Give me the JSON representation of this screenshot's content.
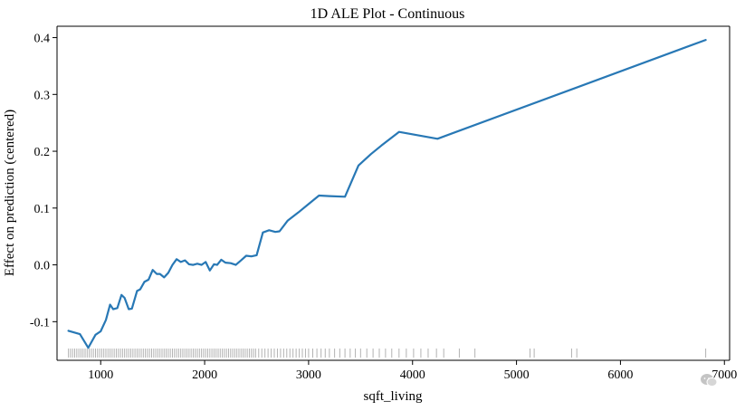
{
  "chart_data": {
    "type": "line",
    "title": "1D ALE Plot - Continuous",
    "xlabel": "sqft_living",
    "ylabel": "Effect on prediction (centered)",
    "xlim": [
      580,
      7050
    ],
    "ylim": [
      -0.168,
      0.42
    ],
    "x_ticks": [
      1000,
      2000,
      3000,
      4000,
      5000,
      6000,
      7000
    ],
    "y_ticks": [
      -0.1,
      0.0,
      0.1,
      0.2,
      0.3,
      0.4
    ],
    "y_tick_labels": [
      "-0.1",
      "0.0",
      "0.1",
      "0.2",
      "0.3",
      "0.4"
    ],
    "grid": false,
    "series": [
      {
        "color": "#2878b5",
        "x": [
          690,
          800,
          880,
          950,
          1000,
          1050,
          1090,
          1120,
          1160,
          1200,
          1230,
          1270,
          1300,
          1350,
          1380,
          1420,
          1460,
          1500,
          1540,
          1570,
          1610,
          1650,
          1690,
          1730,
          1770,
          1810,
          1850,
          1890,
          1930,
          1970,
          2010,
          2050,
          2090,
          2120,
          2160,
          2200,
          2250,
          2300,
          2350,
          2400,
          2450,
          2500,
          2560,
          2620,
          2680,
          2720,
          2800,
          2900,
          3000,
          3100,
          3200,
          3350,
          3480,
          3600,
          3700,
          3870,
          4240,
          6820
        ],
        "y": [
          -0.116,
          -0.122,
          -0.146,
          -0.123,
          -0.117,
          -0.097,
          -0.07,
          -0.078,
          -0.076,
          -0.053,
          -0.058,
          -0.078,
          -0.077,
          -0.046,
          -0.043,
          -0.03,
          -0.026,
          -0.009,
          -0.016,
          -0.016,
          -0.022,
          -0.014,
          0.0,
          0.01,
          0.005,
          0.008,
          0.001,
          0.0,
          0.002,
          0.0,
          0.005,
          -0.01,
          0.001,
          0.0,
          0.009,
          0.004,
          0.003,
          0.0,
          0.008,
          0.016,
          0.015,
          0.017,
          0.057,
          0.061,
          0.058,
          0.059,
          0.078,
          0.092,
          0.107,
          0.122,
          0.121,
          0.12,
          0.175,
          0.195,
          0.21,
          0.234,
          0.222,
          0.396
        ]
      }
    ],
    "rug_x": [
      690,
      710,
      730,
      750,
      770,
      790,
      810,
      830,
      850,
      870,
      890,
      910,
      930,
      950,
      970,
      990,
      1010,
      1030,
      1050,
      1070,
      1090,
      1110,
      1130,
      1150,
      1170,
      1190,
      1210,
      1230,
      1250,
      1270,
      1290,
      1310,
      1330,
      1350,
      1370,
      1390,
      1410,
      1430,
      1450,
      1470,
      1490,
      1510,
      1530,
      1550,
      1570,
      1590,
      1610,
      1630,
      1650,
      1670,
      1690,
      1710,
      1730,
      1750,
      1770,
      1790,
      1810,
      1830,
      1850,
      1870,
      1890,
      1910,
      1930,
      1950,
      1970,
      1990,
      2010,
      2030,
      2050,
      2070,
      2090,
      2110,
      2130,
      2150,
      2170,
      2190,
      2210,
      2230,
      2250,
      2270,
      2290,
      2310,
      2330,
      2350,
      2370,
      2390,
      2410,
      2430,
      2450,
      2470,
      2490,
      2520,
      2550,
      2580,
      2610,
      2640,
      2670,
      2700,
      2730,
      2760,
      2790,
      2820,
      2850,
      2880,
      2910,
      2940,
      2970,
      3000,
      3040,
      3080,
      3120,
      3160,
      3200,
      3250,
      3300,
      3350,
      3400,
      3450,
      3500,
      3560,
      3620,
      3680,
      3740,
      3800,
      3870,
      3940,
      4010,
      4080,
      4150,
      4230,
      4300,
      4450,
      4600,
      5130,
      5170,
      5530,
      5580,
      6820
    ]
  }
}
